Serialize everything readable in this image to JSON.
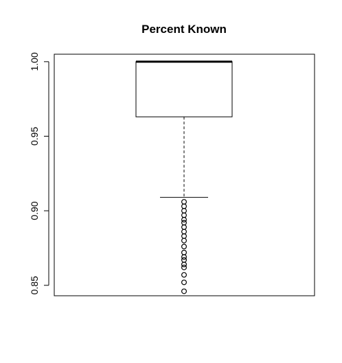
{
  "chart_data": {
    "type": "boxplot",
    "title": "Percent Known",
    "xlabel": "",
    "ylabel": "",
    "ylim": [
      0.843,
      1.005
    ],
    "grid": false,
    "legend": "none",
    "y_ticks": [
      0.85,
      0.9,
      0.95,
      1.0
    ],
    "y_tick_labels": [
      "0.85",
      "0.90",
      "0.95",
      "1.00"
    ],
    "box": {
      "q1": 0.963,
      "median": 1.0,
      "q3": 1.0,
      "whisker_low": 0.909,
      "whisker_high": 1.0
    },
    "outliers": [
      0.906,
      0.903,
      0.9,
      0.897,
      0.894,
      0.892,
      0.889,
      0.886,
      0.883,
      0.88,
      0.876,
      0.872,
      0.869,
      0.867,
      0.864,
      0.862,
      0.857,
      0.852,
      0.846
    ]
  }
}
